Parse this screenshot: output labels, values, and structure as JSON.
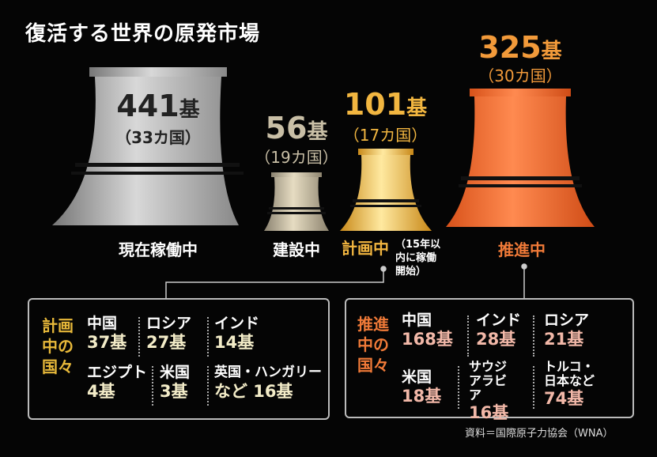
{
  "title": "復活する世界の原発市場",
  "colors": {
    "operating": "#b8b8b8",
    "construction": "#c9bfa6",
    "planned": "#f2b640",
    "proposed": "#f0672a",
    "planned_label": "#e8b93a",
    "proposed_label": "#f07a38",
    "planned_num": "#f3ecc8",
    "proposed_num": "#f2b8a8"
  },
  "towers": [
    {
      "label": "現在稼働中",
      "count": "441",
      "unit": "基",
      "countries": "（33カ国）"
    },
    {
      "label": "建設中",
      "count": "56",
      "unit": "基",
      "countries": "（19カ国）"
    },
    {
      "label": "計画中",
      "note": "（15年以内に稼働開始）",
      "count": "101",
      "unit": "基",
      "countries": "（17カ国）"
    },
    {
      "label": "推進中",
      "count": "325",
      "unit": "基",
      "countries": "（30カ国）"
    }
  ],
  "planned_box": {
    "heading": [
      "計画",
      "中の",
      "国々"
    ],
    "items": [
      {
        "name": "中国",
        "value": "37基"
      },
      {
        "name": "ロシア",
        "value": "27基"
      },
      {
        "name": "インド",
        "value": "14基"
      },
      {
        "name": "エジプト",
        "value": "4基"
      },
      {
        "name": "米国",
        "value": "3基"
      },
      {
        "name": "英国・ハンガリー",
        "value": "など 16基"
      }
    ]
  },
  "proposed_box": {
    "heading": [
      "推進",
      "中の",
      "国々"
    ],
    "items": [
      {
        "name": "中国",
        "value": "168基"
      },
      {
        "name": "インド",
        "value": "28基"
      },
      {
        "name": "ロシア",
        "value": "21基"
      },
      {
        "name": "米国",
        "value": "18基"
      },
      {
        "name": "サウジアラビア",
        "value": "16基"
      },
      {
        "name": "トルコ・日本など",
        "value": "74基"
      }
    ]
  },
  "source": "資料＝国際原子力協会（WNA）"
}
